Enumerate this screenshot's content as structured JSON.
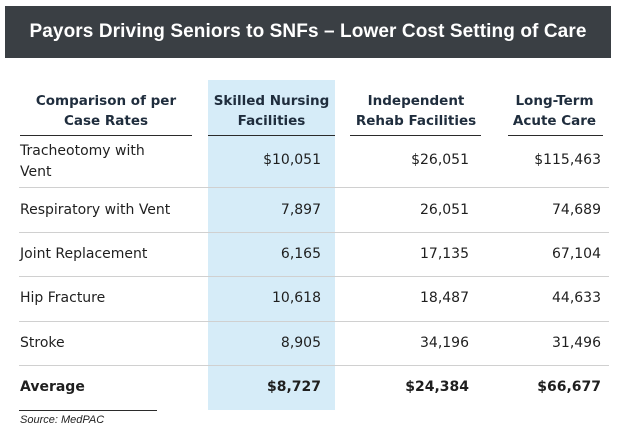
{
  "title": "Payors Driving Seniors to SNFs – Lower Cost Setting of Care",
  "colors": {
    "title_bar": "#3a3f44",
    "highlight": "#d6ecf8"
  },
  "table": {
    "headers": [
      "Comparison of per\nCase Rates",
      "Skilled Nursing\nFacilities",
      "Independent\nRehab Facilities",
      "Long-Term\nAcute Care"
    ],
    "rows": [
      {
        "label": "Tracheotomy with\nVent",
        "snf": "$10,051",
        "irf": "$26,051",
        "ltac": "$115,463"
      },
      {
        "label": "Respiratory with Vent",
        "snf": "7,897",
        "irf": "26,051",
        "ltac": "74,689"
      },
      {
        "label": "Joint Replacement",
        "snf": "6,165",
        "irf": "17,135",
        "ltac": "67,104"
      },
      {
        "label": "Hip Fracture",
        "snf": "10,618",
        "irf": "18,487",
        "ltac": "44,633"
      },
      {
        "label": "Stroke",
        "snf": "8,905",
        "irf": "34,196",
        "ltac": "31,496"
      },
      {
        "label": "Average",
        "snf": "$8,727",
        "irf": "$24,384",
        "ltac": "$66,677"
      }
    ]
  },
  "source": "Source: MedPAC"
}
